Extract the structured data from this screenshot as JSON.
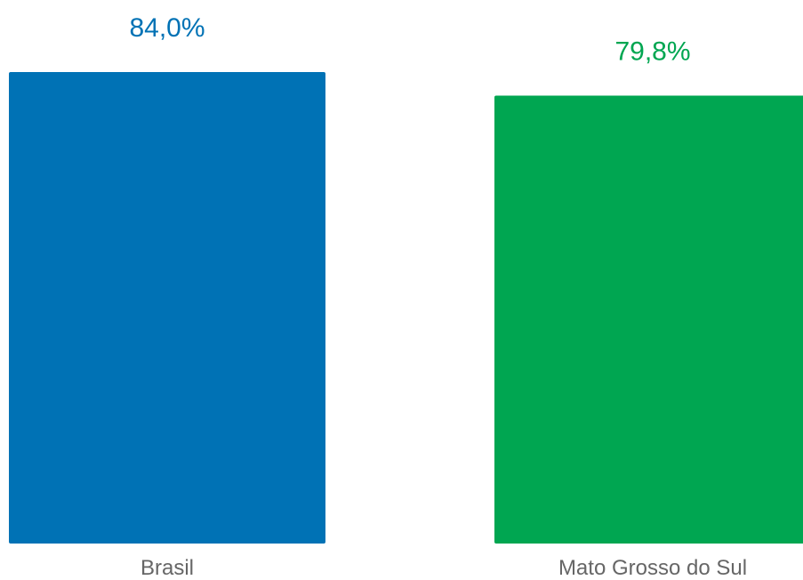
{
  "chart_data": {
    "type": "bar",
    "categories": [
      "Brasil",
      "Mato Grosso do Sul"
    ],
    "values": [
      84.0,
      79.8
    ],
    "value_labels": [
      "84,0%",
      "79,8%"
    ],
    "colors": [
      "#0072B5",
      "#00A651"
    ],
    "title": "",
    "xlabel": "",
    "ylabel": "",
    "ylim": [
      0,
      84.0
    ],
    "grid": false,
    "legend": "none"
  }
}
